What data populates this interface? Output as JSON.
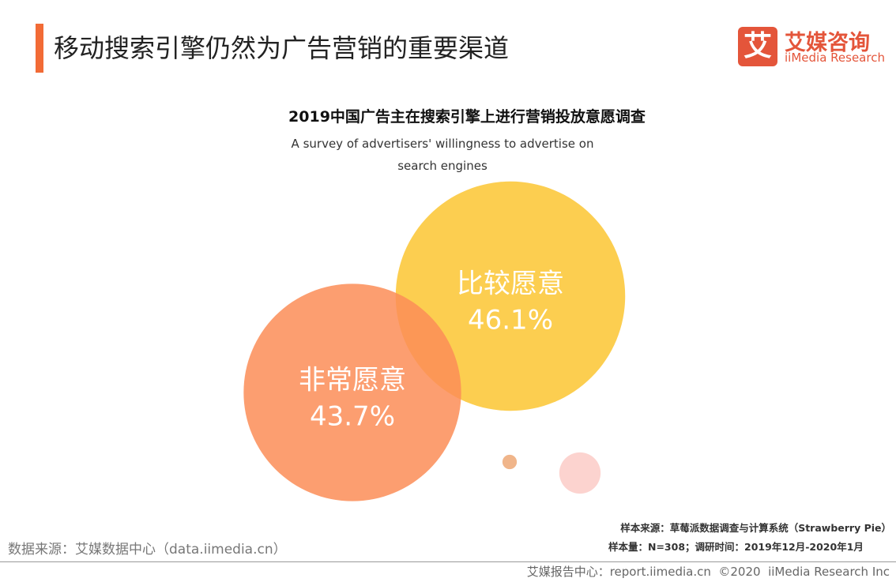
{
  "header": {
    "title": "移动搜索引擎仍然为广告营销的重要渠道",
    "logo_cn": "艾媒咨询",
    "logo_en": "iiMedia Research",
    "logo_icon": "艾"
  },
  "chart_data": {
    "type": "bubble",
    "title": "2019中国广告主在搜索引擎上进行营销投放意愿调查",
    "subtitle": "A survey of advertisers' willingness to advertise on search engines",
    "categories": [
      "比较愿意",
      "非常愿意",
      null,
      null
    ],
    "values": [
      46.1,
      43.7,
      2.9,
      8.3
    ],
    "value_labels": [
      "46.1%",
      "43.7%",
      null,
      null
    ],
    "colors": [
      "#fcc631",
      "#fb8d57",
      "#f0b58a",
      "#fcd3cf"
    ]
  },
  "notes": {
    "sample_source": "样本来源：草莓派数据调查与计算系统（Strawberry Pie）",
    "sample_size": "样本量：N=308；调研时间：2019年12月-2020年1月",
    "data_source": "数据来源：艾媒数据中心（data.iimedia.cn）"
  },
  "footer": {
    "text": "艾媒报告中心：report.iimedia.cn  ©2020  iiMedia Research Inc"
  }
}
